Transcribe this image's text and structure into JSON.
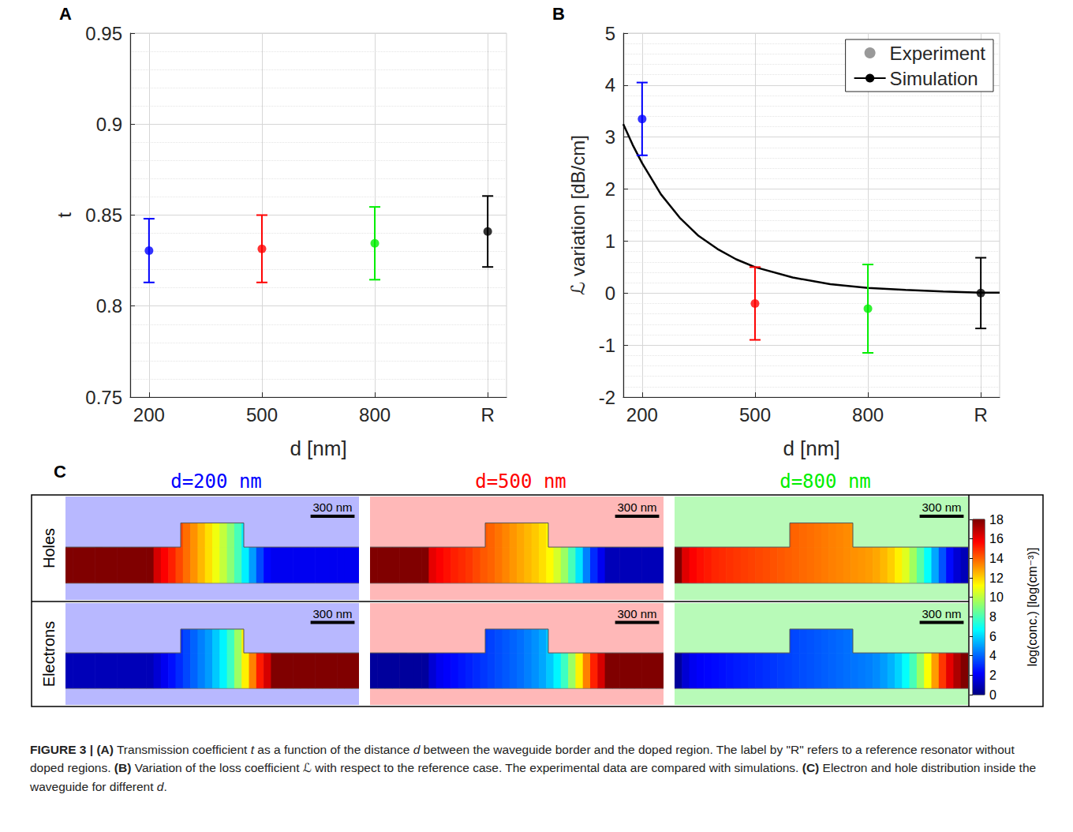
{
  "chart_data": [
    {
      "panel": "A",
      "type": "scatter",
      "xlabel": "d [nm]",
      "ylabel": "t",
      "xlim": [
        150,
        1150
      ],
      "xticks": [
        200,
        500,
        800,
        {
          "value": 1100,
          "label": "R"
        }
      ],
      "ylim": [
        0.75,
        0.95
      ],
      "yticks": [
        0.75,
        0.8,
        0.85,
        0.9,
        0.95
      ],
      "grid": true,
      "x": [
        200,
        500,
        800,
        1100
      ],
      "values": [
        0.8305,
        0.8315,
        0.8345,
        0.841
      ],
      "errors": [
        0.0175,
        0.0185,
        0.02,
        0.0195
      ],
      "colors": [
        "#0000ff",
        "#ff0000",
        "#00ee00",
        "#000000"
      ]
    },
    {
      "panel": "B",
      "type": "scatter",
      "xlabel": "d [nm]",
      "ylabel": "ℒ variation [dB/cm]",
      "xlim": [
        150,
        1150
      ],
      "xticks": [
        200,
        500,
        800,
        {
          "value": 1100,
          "label": "R"
        }
      ],
      "ylim": [
        -2,
        5
      ],
      "yticks": [
        -2,
        -1,
        0,
        1,
        2,
        3,
        4,
        5
      ],
      "grid": true,
      "legend": "upper right",
      "series": [
        {
          "name": "Experiment",
          "type": "scatter",
          "color": "#808080",
          "colors": [
            "#0000ff",
            "#ff0000",
            "#00ee00",
            "#000000"
          ],
          "x": [
            200,
            500,
            800,
            1100
          ],
          "values": [
            3.35,
            -0.2,
            -0.3,
            0
          ],
          "errors": [
            0.7,
            0.7,
            0.85,
            0.68
          ]
        },
        {
          "name": "Simulation",
          "type": "line",
          "color": "#000000",
          "x": [
            150,
            175,
            200,
            225,
            250,
            300,
            350,
            400,
            450,
            500,
            600,
            700,
            800,
            900,
            1000,
            1100,
            1150
          ],
          "values": [
            3.25,
            2.85,
            2.5,
            2.2,
            1.9,
            1.45,
            1.1,
            0.85,
            0.65,
            0.5,
            0.3,
            0.17,
            0.1,
            0.06,
            0.03,
            0.01,
            0.01
          ]
        }
      ]
    },
    {
      "panel": "C",
      "type": "heatmap",
      "tick_labels": false,
      "xlim": [
        -1000,
        1000
      ],
      "ylim": [
        -110,
        575
      ],
      "bins": [
        -1000,
        -950,
        -900,
        -850,
        -800,
        -750,
        -700,
        -650,
        -600,
        -550,
        -500,
        -450,
        -400,
        -350,
        -300,
        -250,
        -200,
        -150,
        -100,
        -50,
        0,
        50,
        100,
        150,
        200,
        250,
        300,
        350,
        400,
        450,
        500,
        550,
        600,
        650,
        700,
        750,
        800,
        850,
        900,
        950,
        1000
      ],
      "waveguide": {
        "slab": [
          0,
          240
        ],
        "rib_x": [
          -215,
          215
        ],
        "rib_top": 400
      },
      "scale_bar": {
        "label": "300 nm",
        "length": 300
      },
      "rows": [
        "Holes",
        "Electrons"
      ],
      "colorbar": {
        "label": "log(conc.) [log(cm⁻³)]",
        "range": [
          0,
          18
        ],
        "ticks": [
          0,
          2,
          4,
          6,
          8,
          10,
          12,
          14,
          16,
          18
        ]
      },
      "panels": [
        {
          "title": "d=200 nm",
          "color": "#0000ff",
          "values": [
            [
              18,
              18,
              18,
              18,
              18,
              18,
              18,
              18,
              18,
              18,
              18,
              18,
              16.5,
              15.8,
              15.2,
              14.5,
              13.8,
              13.2,
              12.5,
              11.8,
              11,
              10.2,
              9.2,
              8,
              6.5,
              5,
              3.5,
              2.3,
              2,
              2,
              2,
              2,
              2,
              2,
              2,
              2,
              2,
              2,
              2,
              2
            ],
            [
              1,
              1,
              1,
              1,
              1,
              1,
              1,
              1,
              1,
              1,
              1,
              1,
              1.5,
              2,
              2.5,
              3,
              3.5,
              4,
              4.5,
              5,
              5.8,
              6.6,
              7.8,
              9.5,
              11.5,
              13.5,
              15.3,
              16.5,
              18,
              18,
              18,
              18,
              18,
              18,
              18,
              18,
              18,
              18,
              18,
              18
            ]
          ]
        },
        {
          "title": "d=500 nm",
          "color": "#ff0000",
          "values": [
            [
              18,
              18,
              18,
              18,
              18,
              18,
              18,
              18,
              16.2,
              15.8,
              15.5,
              15.2,
              15,
              14.8,
              14.5,
              14.2,
              14,
              13.7,
              13.4,
              13.1,
              12.8,
              12.5,
              12.2,
              11.8,
              11.3,
              10.5,
              9.5,
              8,
              6.3,
              4.5,
              3,
              2,
              1,
              1,
              1,
              1,
              1,
              1,
              1,
              1
            ],
            [
              0.5,
              0.5,
              0.5,
              0.5,
              0.5,
              0.5,
              0.5,
              0.5,
              1.5,
              2,
              2.2,
              2.4,
              2.6,
              2.8,
              3,
              3.2,
              3.4,
              3.6,
              3.8,
              4,
              4.2,
              4.5,
              4.8,
              5.2,
              5.8,
              6.6,
              7.8,
              9.5,
              11.5,
              13.5,
              15.2,
              16.5,
              18,
              18,
              18,
              18,
              18,
              18,
              18,
              18
            ]
          ]
        },
        {
          "title": "d=800 nm",
          "color": "#00ee00",
          "values": [
            [
              18,
              16.3,
              15.8,
              15.5,
              15.3,
              15.1,
              15,
              14.9,
              14.8,
              14.7,
              14.6,
              14.5,
              14.4,
              14.3,
              14.2,
              14.1,
              14,
              13.9,
              13.8,
              13.7,
              13.6,
              13.5,
              13.4,
              13.3,
              13.2,
              13.1,
              13,
              12.8,
              12.5,
              12.1,
              11.5,
              10.7,
              9.6,
              8.3,
              6.8,
              5.2,
              3.7,
              2.4,
              1.5,
              1
            ],
            [
              0.5,
              1.5,
              2,
              2.2,
              2.3,
              2.4,
              2.5,
              2.6,
              2.7,
              2.8,
              2.9,
              3,
              3.1,
              3.2,
              3.3,
              3.4,
              3.5,
              3.6,
              3.7,
              3.8,
              3.9,
              4,
              4.1,
              4.2,
              4.3,
              4.4,
              4.5,
              4.7,
              5,
              5.4,
              6,
              6.8,
              8,
              9.5,
              11.2,
              13,
              14.8,
              16.2,
              17.2,
              18
            ]
          ]
        }
      ]
    }
  ],
  "caption": [
    {
      "text": "FIGURE 3 | (A)",
      "style": "bold"
    },
    {
      "text": " Transmission coefficient ",
      "style": "normal"
    },
    {
      "text": "t",
      "style": "italic"
    },
    {
      "text": " as a function of the distance ",
      "style": "normal"
    },
    {
      "text": "d",
      "style": "italic"
    },
    {
      "text": " between the waveguide border and the doped region. The label by \"R\" refers to a reference resonator without doped regions. ",
      "style": "normal"
    },
    {
      "text": "(B)",
      "style": "bold"
    },
    {
      "text": " Variation of the loss coefficient ",
      "style": "normal"
    },
    {
      "text": "ℒ",
      "style": "italic"
    },
    {
      "text": " with respect to the reference case. The experimental data are compared with simulations. ",
      "style": "normal"
    },
    {
      "text": "(C)",
      "style": "bold"
    },
    {
      "text": " Electron and hole distribution inside the waveguide for different ",
      "style": "normal"
    },
    {
      "text": "d",
      "style": "italic"
    },
    {
      "text": ".",
      "style": "normal"
    }
  ]
}
